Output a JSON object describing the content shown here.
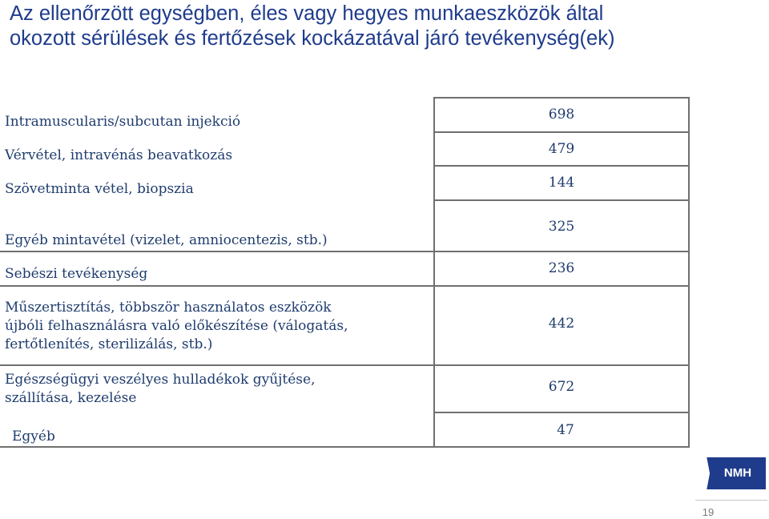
{
  "title": {
    "line1": "Az ellenőrzött egységben, éles vagy hegyes munkaeszközök által",
    "line2": "okozott sérülések és fertőzések kockázatával járó tevékenység(ek)"
  },
  "rows": [
    {
      "lines": [
        "Intramuscularis/subcutan injekció"
      ],
      "value": "698"
    },
    {
      "lines": [
        "Vérvétel, intravénás beavatkozás"
      ],
      "value": "479"
    },
    {
      "lines": [
        "Szövetminta vétel, biopszia"
      ],
      "value": "144"
    },
    {
      "lines": [
        "Egyéb mintavétel (vizelet, amniocentezis, stb.)"
      ],
      "value": "325"
    },
    {
      "lines": [
        "Sebészi tevékenység"
      ],
      "value": "236"
    },
    {
      "lines": [
        "Műszertisztítás, többször használatos eszközök",
        "újbóli felhasználásra való előkészítése (válogatás,",
        "fertőtlenítés, sterilizálás, stb.)"
      ],
      "value": "442"
    },
    {
      "lines": [
        "Egészségügyi veszélyes hulladékok gyűjtése,",
        "szállítása, kezelése"
      ],
      "value": "672"
    },
    {
      "lines": [
        "Egyéb"
      ],
      "value": "47"
    }
  ],
  "logo_text": "NMH",
  "page_number": "19",
  "colors": {
    "title": "#1f3c8c",
    "text": "#1f3c6e",
    "logo_bg": "#1f3c8c",
    "rules": "#707070"
  }
}
